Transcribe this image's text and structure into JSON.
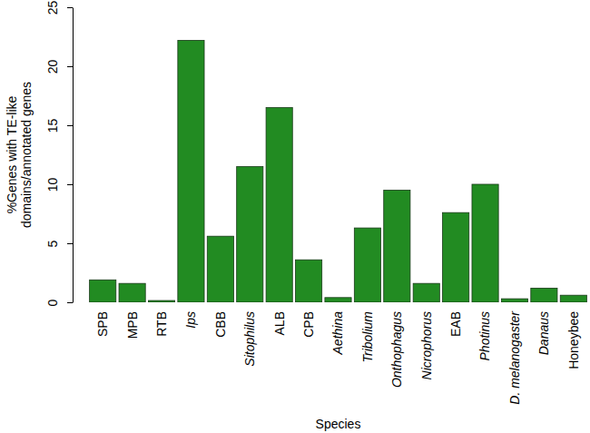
{
  "chart_data": {
    "type": "bar",
    "x_label": "Species",
    "y_label": "%Genes with TE-like\ndomains/annotated genes",
    "categories": [
      "SPB",
      "MPB",
      "RTB",
      "Ips",
      "CBB",
      "Sitophilus",
      "ALB",
      "CPB",
      "Aethina",
      "Tribolium",
      "Onthophagus",
      "Nicrophorus",
      "EAB",
      "Photinus",
      "D. melanogaster",
      "Danaus",
      "Honeybee"
    ],
    "values": [
      1.9,
      1.6,
      0.15,
      22.2,
      5.6,
      11.5,
      16.5,
      3.6,
      0.4,
      6.3,
      9.5,
      1.6,
      7.6,
      10.0,
      0.3,
      1.2,
      0.6
    ],
    "color": "#228b22",
    "ylim": [
      0,
      25
    ],
    "yticks": [
      0,
      5,
      10,
      15,
      20,
      25
    ],
    "grid": false
  }
}
